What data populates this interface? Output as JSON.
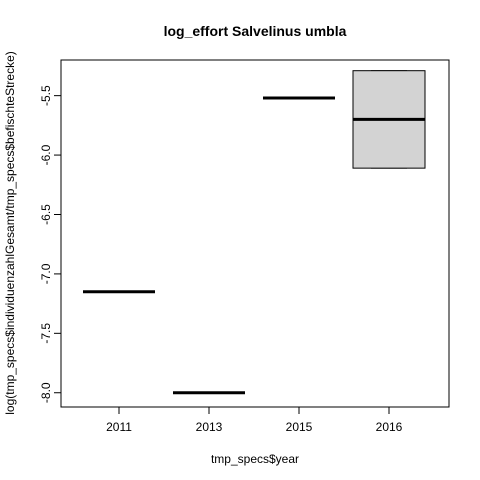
{
  "chart_data": {
    "type": "box",
    "title": "log_effort Salvelinus umbla",
    "x_label": "tmp_specs$year",
    "y_label": "log(tmp_specs$individuenzahlGesamt/tmp_specs$befischteStrecke)",
    "categories": [
      "2011",
      "2013",
      "2015",
      "2016"
    ],
    "min": [
      -7.15,
      -8.0,
      -5.52,
      -6.11
    ],
    "q1": [
      -7.15,
      -8.0,
      -5.52,
      -6.11
    ],
    "median": [
      -7.15,
      -8.0,
      -5.52,
      -5.7
    ],
    "q3": [
      -7.15,
      -8.0,
      -5.52,
      -5.29
    ],
    "max": [
      -7.15,
      -8.0,
      -5.52,
      -5.29
    ],
    "color": "#d3d3d3",
    "ylim": [
      -8.12,
      -5.2
    ],
    "yticks": [
      {
        "value": -8,
        "label": "-8.0"
      },
      -7.5,
      {
        "value": -7,
        "label": "-7.0"
      },
      -6.5,
      {
        "value": -6,
        "label": "-6.0"
      },
      -5.5
    ]
  }
}
